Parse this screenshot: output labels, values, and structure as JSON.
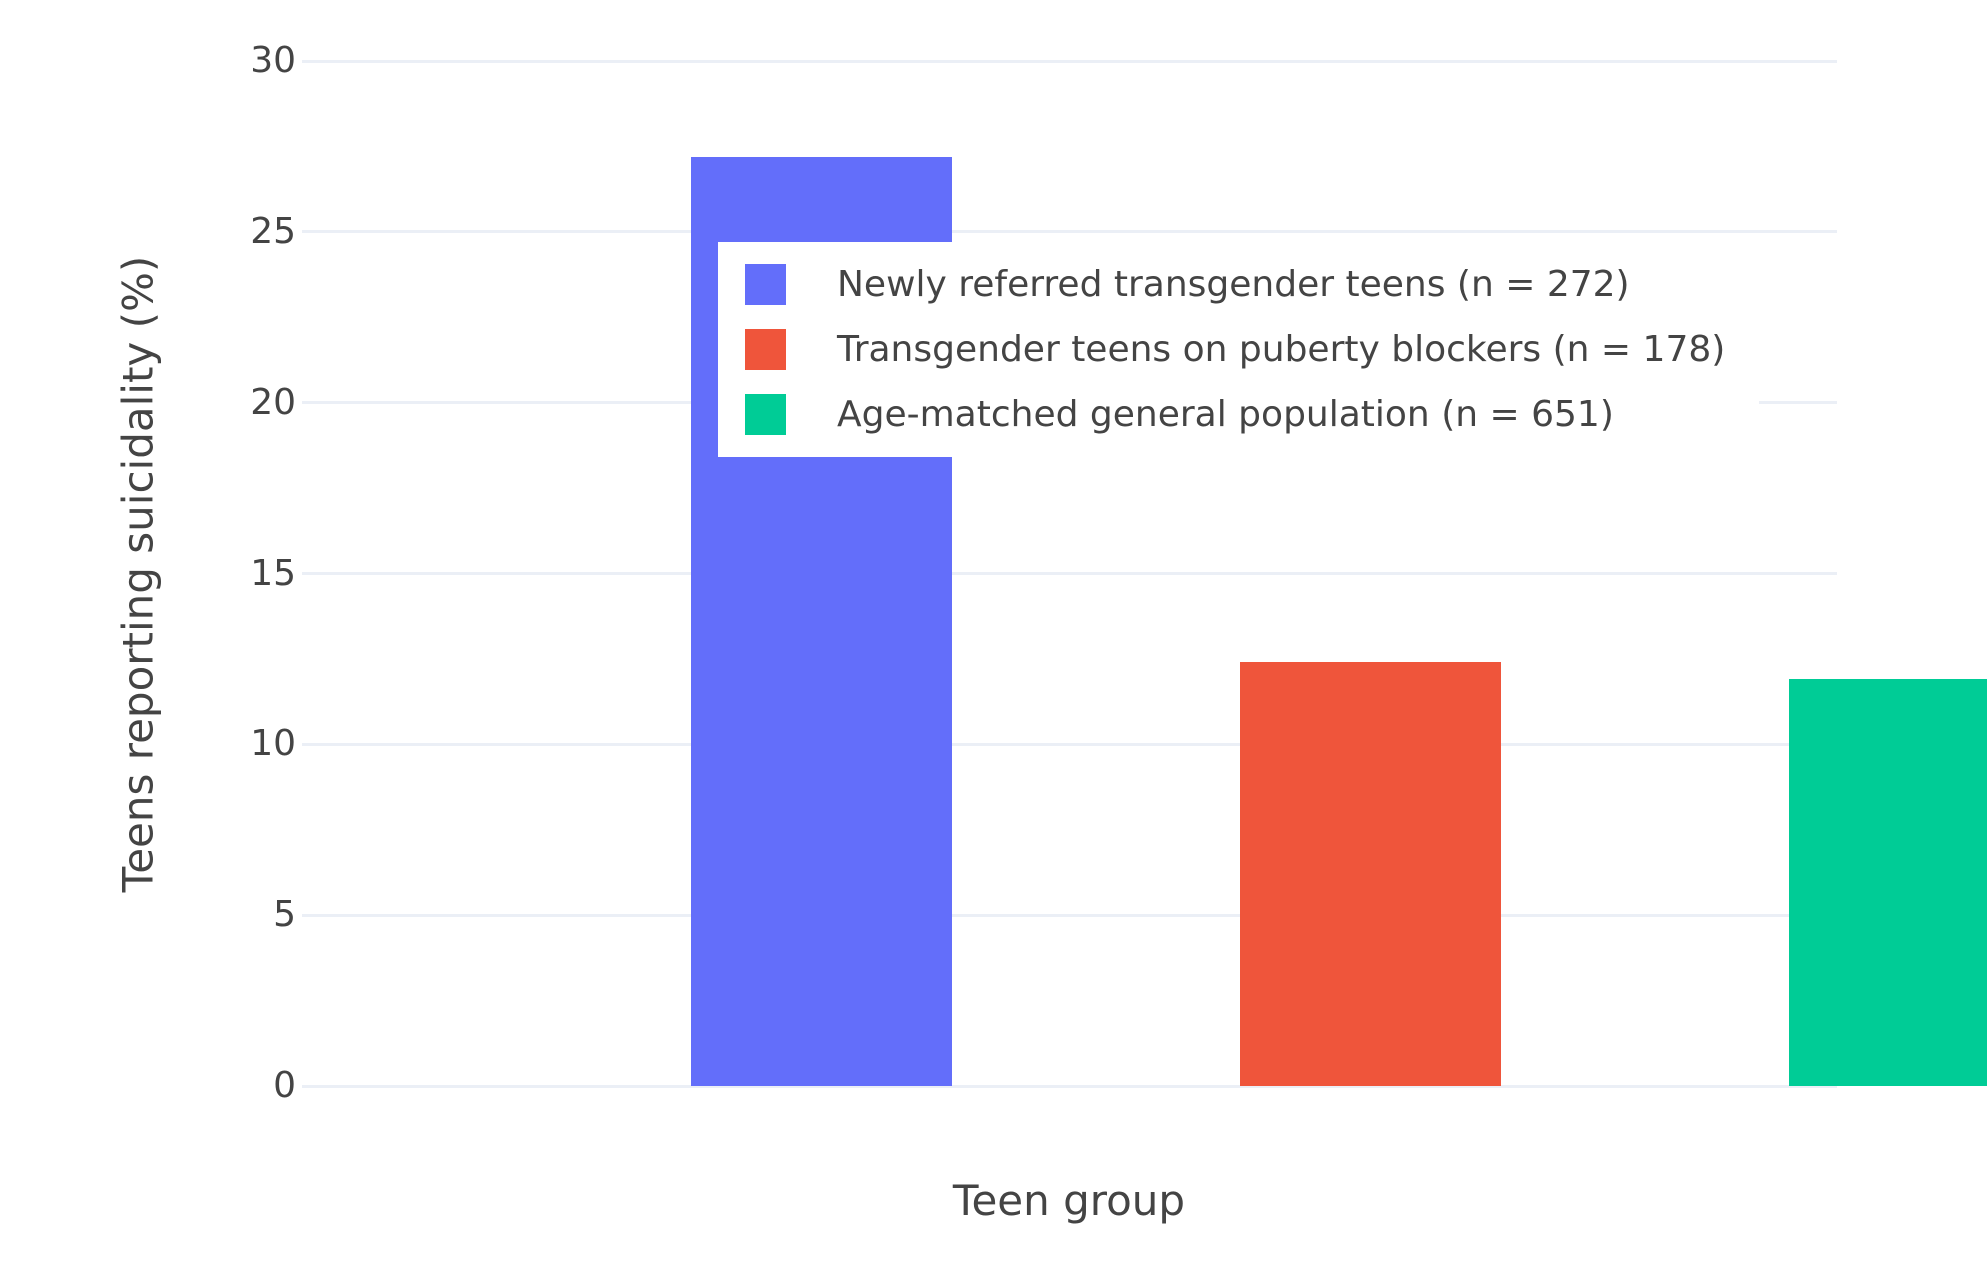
{
  "chart_data": {
    "type": "bar",
    "title": "",
    "xlabel": "Teen group",
    "ylabel": "Teens reporting suicidality (%)",
    "categories": [
      "Newly referred transgender teens (n = 272)",
      "Transgender teens on puberty blockers (n = 178)",
      "Age-matched general population (n = 651)"
    ],
    "values": [
      27.2,
      12.4,
      11.9
    ],
    "bar_colors": [
      "#636EFA",
      "#EF553B",
      "#00CC96"
    ],
    "ylim": [
      0,
      30
    ],
    "yticks": [
      0,
      5,
      10,
      15,
      20,
      25,
      30
    ],
    "grid": true,
    "grid_color": "#EBEFF6",
    "text_color": "#444444",
    "background_color": "#FFFFFF",
    "legend_position": "inside top-left",
    "x_tick_labels_visible": false,
    "legend": [
      {
        "label": "Newly referred transgender teens (n = 272)",
        "color": "#636EFA"
      },
      {
        "label": "Transgender teens on puberty blockers (n = 178)",
        "color": "#EF553B"
      },
      {
        "label": "Age-matched general population (n = 651)",
        "color": "#00CC96"
      }
    ]
  }
}
